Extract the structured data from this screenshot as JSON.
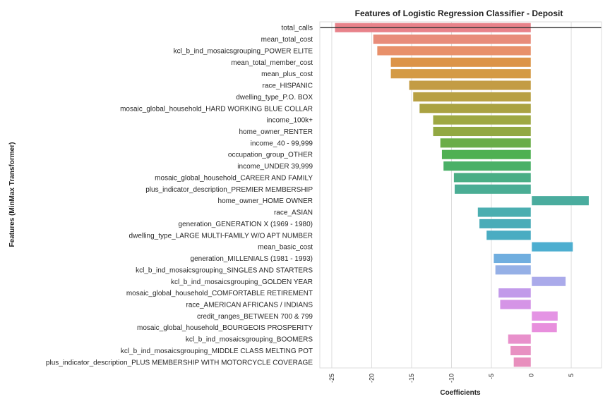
{
  "chart_data": {
    "type": "bar",
    "orientation": "horizontal",
    "title": "Features of Logistic Regression Classifier - Deposit",
    "xlabel": "Coefficients",
    "ylabel": "Features (MinMax Transformer)",
    "xlim": [
      -26.5,
      8.8
    ],
    "xticks": [
      -25,
      -20,
      -15,
      -10,
      -5,
      0,
      5
    ],
    "xtick_rotation": 90,
    "grid": true,
    "reference_line": 0,
    "categories": [
      "total_calls",
      "mean_total_cost",
      "kcl_b_ind_mosaicsgrouping_POWER ELITE",
      "mean_total_member_cost",
      "mean_plus_cost",
      "race_HISPANIC",
      "dwelling_type_P.O. BOX",
      "mosaic_global_household_HARD WORKING BLUE COLLAR",
      "income_100k+",
      "home_owner_RENTER",
      "income_40 - 99,999",
      "occupation_group_OTHER",
      "income_UNDER 39,999",
      "mosaic_global_household_CAREER AND FAMILY",
      "plus_indicator_description_PREMIER MEMBERSHIP",
      "home_owner_HOME OWNER",
      "race_ASIAN",
      "generation_GENERATION X (1969 - 1980)",
      "dwelling_type_LARGE MULTI-FAMILY W/O APT NUMBER",
      "mean_basic_cost",
      "generation_MILLENIALS (1981 - 1993)",
      "kcl_b_ind_mosaicsgrouping_SINGLES AND STARTERS",
      "kcl_b_ind_mosaicsgrouping_GOLDEN YEAR",
      "mosaic_global_household_COMFORTABLE RETIREMENT",
      "race_AMERICAN AFRICANS / INDIANS",
      "credit_ranges_BETWEEN 700 & 799",
      "mosaic_global_household_BOURGEOIS PROSPERITY",
      "kcl_b_ind_mosaicsgrouping_BOOMERS",
      "kcl_b_ind_mosaicsgrouping_MIDDLE CLASS MELTING POT",
      "plus_indicator_description_PLUS MEMBERSHIP WITH MOTORCYCLE COVERAGE"
    ],
    "values": [
      -24.6,
      -19.8,
      -19.3,
      -17.6,
      -17.6,
      -15.3,
      -14.8,
      -14.0,
      -12.3,
      -12.3,
      -11.4,
      -11.2,
      -11.0,
      -9.7,
      -9.6,
      7.2,
      -6.7,
      -6.5,
      -5.6,
      5.2,
      -4.7,
      -4.5,
      4.3,
      -4.1,
      -3.9,
      3.3,
      3.2,
      -2.9,
      -2.6,
      -2.2
    ],
    "colors": [
      "#e8828a",
      "#e88c7a",
      "#e8906a",
      "#dc9448",
      "#d49a45",
      "#c39c44",
      "#b8a043",
      "#aaa242",
      "#9ea843",
      "#92a843",
      "#6aad48",
      "#4fb052",
      "#4ab067",
      "#4aae85",
      "#4aad94",
      "#4aac9e",
      "#4baeb0",
      "#4aacb8",
      "#4aacc2",
      "#4daed0",
      "#70aedf",
      "#95b0e6",
      "#aaaaea",
      "#c29aea",
      "#d594e6",
      "#e494e4",
      "#e88fdd",
      "#e890cb",
      "#e891c2",
      "#e88fbd"
    ]
  }
}
